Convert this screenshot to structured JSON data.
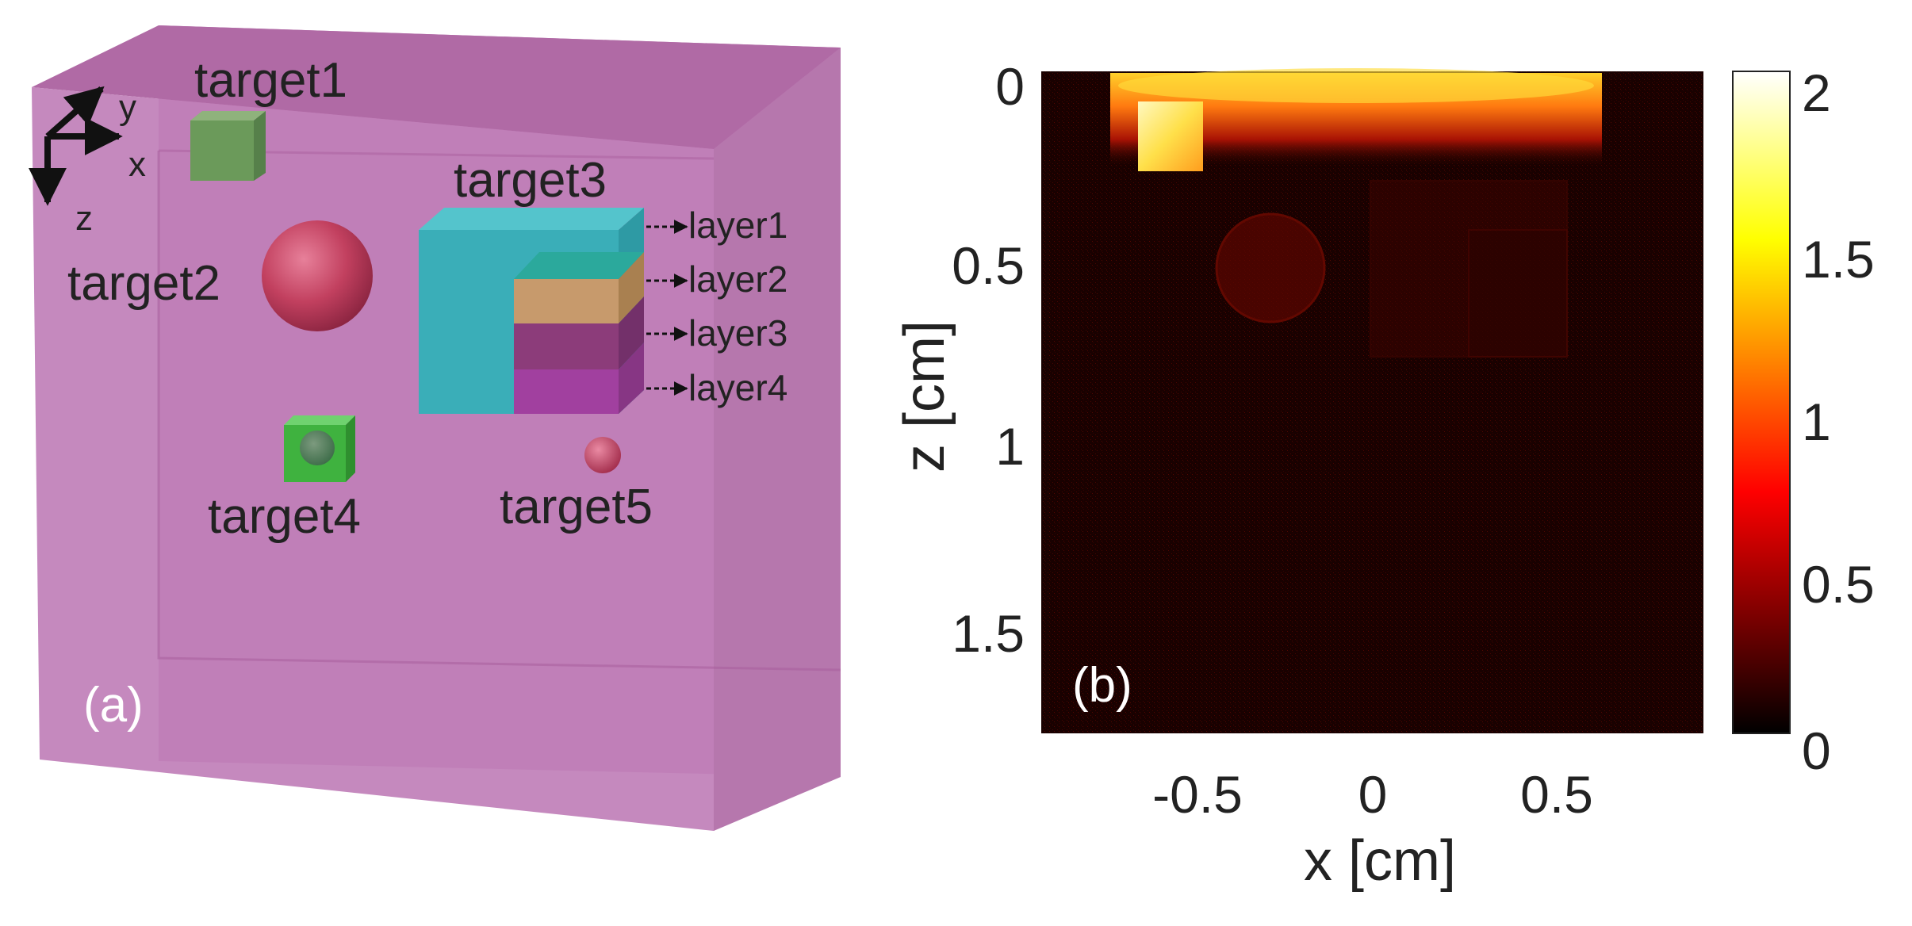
{
  "panel_a": {
    "label": "(a)",
    "axes": {
      "x": "x",
      "y": "y",
      "z": "z"
    },
    "targets": [
      "target1",
      "target2",
      "target3",
      "target4",
      "target5"
    ],
    "layers": [
      "layer1",
      "layer2",
      "layer3",
      "layer4"
    ],
    "colors": {
      "phantom": "#c27bb6",
      "target1": "#6b9a5a",
      "target2": "#c2405f",
      "target3": "#3aaeb8",
      "target4": "#3fb23f",
      "target5": "#c2405f",
      "layer2": "#c79a6c",
      "layer3": "#8c3c7a",
      "layer4": "#a1409f"
    }
  },
  "panel_b": {
    "label": "(b)",
    "xlabel": "x [cm]",
    "ylabel": "z [cm]",
    "x_ticks": [
      "-0.5",
      "0",
      "0.5"
    ],
    "z_ticks": [
      "0",
      "0.5",
      "1",
      "1.5"
    ],
    "colorbar_ticks": [
      "0",
      "0.5",
      "1",
      "1.5",
      "2"
    ],
    "colormap": "hot"
  },
  "chart_data": {
    "type": "heatmap",
    "xlabel": "x [cm]",
    "ylabel": "z [cm]",
    "xlim": [
      -0.9,
      0.9
    ],
    "zlim": [
      0,
      1.8
    ],
    "z_reversed": true,
    "clim": [
      0,
      2
    ],
    "x_ticks": [
      -0.5,
      0,
      0.5
    ],
    "z_ticks": [
      0,
      0.5,
      1,
      1.5
    ],
    "colorbar_ticks": [
      0,
      0.5,
      1,
      1.5,
      2
    ]
  }
}
